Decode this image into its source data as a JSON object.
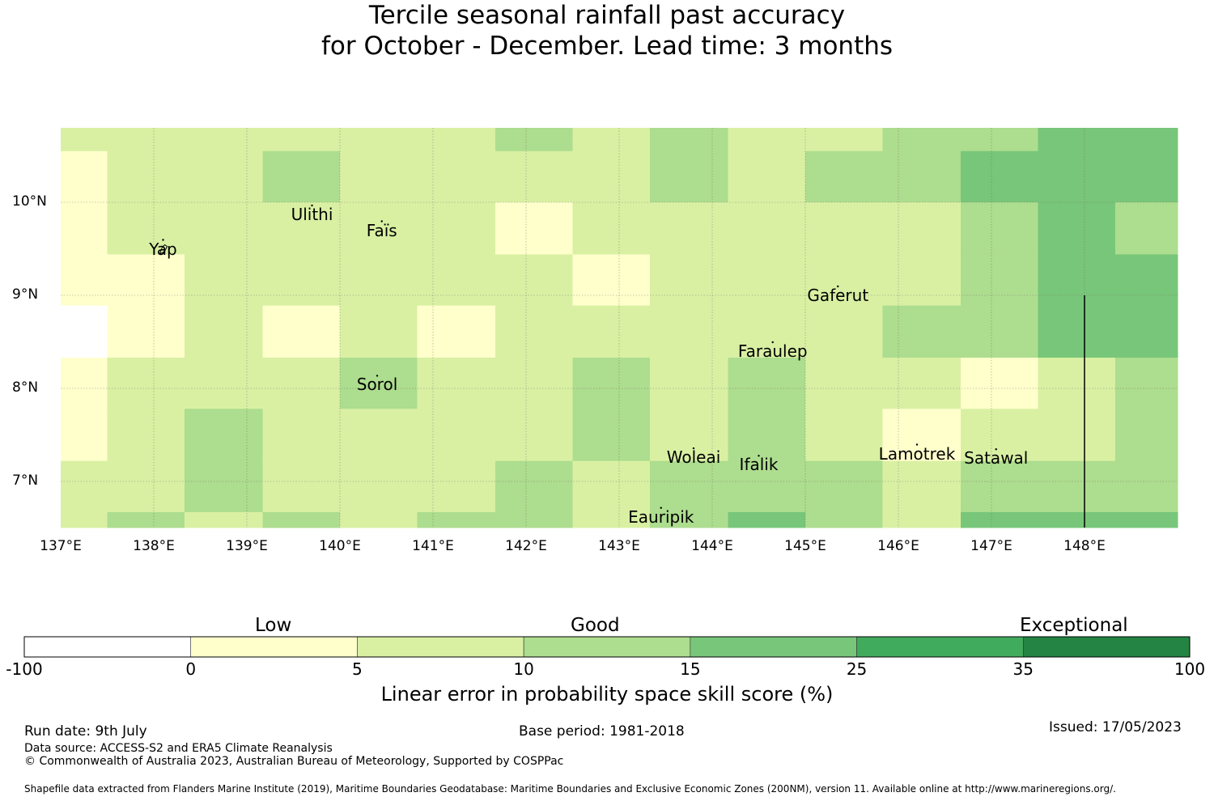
{
  "title": {
    "line1": "Tercile seasonal rainfall past accuracy",
    "line2": "for October - December. Lead time: 3 months"
  },
  "map": {
    "lon_range": [
      137,
      149
    ],
    "lat_range": [
      6.5,
      10.8
    ],
    "x_ticks": [
      "137°E",
      "138°E",
      "139°E",
      "140°E",
      "141°E",
      "142°E",
      "143°E",
      "144°E",
      "145°E",
      "146°E",
      "147°E",
      "148°E"
    ],
    "y_ticks": [
      "10°N",
      "9°N",
      "8°N",
      "7°N"
    ],
    "grid": true,
    "places": [
      {
        "name": "Ulithi",
        "lon": 139.7,
        "lat": 9.87
      },
      {
        "name": "Faïs",
        "lon": 140.45,
        "lat": 9.7
      },
      {
        "name": "Yap",
        "lon": 138.1,
        "lat": 9.5
      },
      {
        "name": "Gaferut",
        "lon": 145.35,
        "lat": 9.0
      },
      {
        "name": "Faraulep",
        "lon": 144.65,
        "lat": 8.4
      },
      {
        "name": "Sorol",
        "lon": 140.4,
        "lat": 8.04
      },
      {
        "name": "Woleai",
        "lon": 143.8,
        "lat": 7.26
      },
      {
        "name": "Ifalik",
        "lon": 144.5,
        "lat": 7.18
      },
      {
        "name": "Lamotrek",
        "lon": 146.2,
        "lat": 7.3
      },
      {
        "name": "Satawal",
        "lon": 147.05,
        "lat": 7.25
      },
      {
        "name": "Eauripik",
        "lon": 143.45,
        "lat": 6.62
      }
    ]
  },
  "chart_data": {
    "type": "heatmap",
    "x_edges": [
      137,
      137.5,
      138.33,
      139.17,
      140,
      140.83,
      141.67,
      142.5,
      143.33,
      144.17,
      145,
      145.83,
      146.67,
      147.5,
      148.33,
      149
    ],
    "y_edges": [
      10.8,
      10.55,
      10.0,
      9.44,
      8.89,
      8.33,
      7.78,
      7.22,
      6.67,
      6.5
    ],
    "skill_class": [
      [
        2,
        2,
        2,
        2,
        2,
        2,
        3,
        2,
        3,
        2,
        2,
        3,
        3,
        4,
        4
      ],
      [
        1,
        2,
        2,
        3,
        2,
        2,
        2,
        2,
        3,
        2,
        3,
        3,
        4,
        4,
        4
      ],
      [
        1,
        2,
        2,
        2,
        2,
        2,
        1,
        2,
        2,
        2,
        2,
        2,
        3,
        4,
        3
      ],
      [
        1,
        1,
        2,
        2,
        2,
        2,
        2,
        1,
        2,
        2,
        2,
        2,
        3,
        4,
        4
      ],
      [
        0,
        1,
        2,
        1,
        2,
        1,
        2,
        2,
        2,
        2,
        2,
        3,
        3,
        4,
        4
      ],
      [
        1,
        2,
        2,
        2,
        3,
        2,
        2,
        3,
        2,
        3,
        2,
        2,
        1,
        2,
        3
      ],
      [
        1,
        2,
        3,
        2,
        2,
        2,
        2,
        3,
        2,
        3,
        2,
        1,
        2,
        2,
        3
      ],
      [
        2,
        2,
        3,
        2,
        2,
        2,
        3,
        2,
        3,
        3,
        3,
        2,
        3,
        3,
        3
      ],
      [
        2,
        3,
        2,
        3,
        2,
        3,
        3,
        2,
        3,
        4,
        3,
        2,
        4,
        4,
        4
      ]
    ],
    "colorbar": {
      "bounds": [
        "-100",
        "0",
        "5",
        "10",
        "15",
        "25",
        "35",
        "100"
      ],
      "colors": [
        "#ffffff",
        "#ffffcc",
        "#d9f0a3",
        "#addd8e",
        "#78c679",
        "#41ab5d",
        "#238443"
      ],
      "categories": [
        "Low",
        "Good",
        "Exceptional"
      ],
      "label": "Linear error in probability space skill score (%)"
    }
  },
  "footer": {
    "run_date": "Run date: 9th July",
    "base_period": "Base period: 1981-2018",
    "issued": "Issued: 17/05/2023",
    "data_source": "Data source: ACCESS-S2 and ERA5 Climate Reanalysis",
    "copyright": "© Commonwealth of Australia 2023, Australian Bureau of Meteorology, Supported by COSPPac",
    "shapefile": "Shapefile data extracted from Flanders Marine Institute (2019), Maritime Boundaries Geodatabase: Maritime Boundaries and Exclusive Economic Zones (200NM), version 11. Available online at http://www.marineregions.org/."
  }
}
